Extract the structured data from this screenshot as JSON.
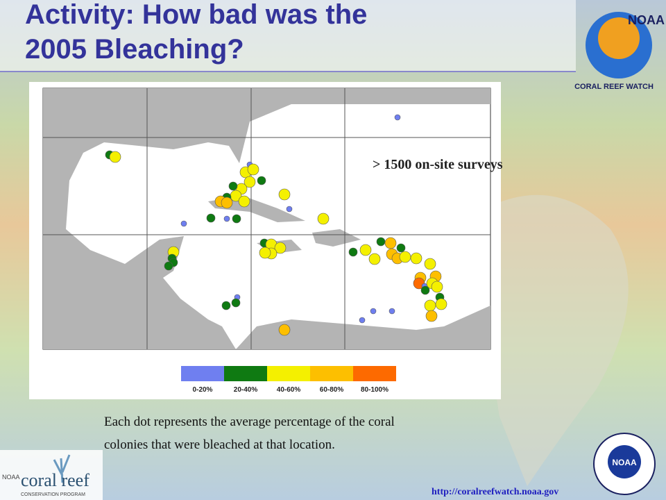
{
  "slide": {
    "title": "Activity: How bad was the 2005 Bleaching?",
    "annotation": "> 1500 on-site surveys",
    "legend": [
      {
        "label": "0-20%",
        "color": "#6f7ff0"
      },
      {
        "label": "20-40%",
        "color": "#0f7a12"
      },
      {
        "label": "40-60%",
        "color": "#f4f000"
      },
      {
        "label": "60-80%",
        "color": "#fdbf00"
      },
      {
        "label": "80-100%",
        "color": "#fd6a00"
      }
    ],
    "caption": [
      "Each dot represents the average percentage of the coral",
      "colonies that were bleached at that location."
    ],
    "url": "http://coralreefwatch.noaa.gov",
    "logos": {
      "noaa": "NOAA",
      "crw": "CORAL REEF WATCH",
      "crcp_noaa": "NOAA",
      "crcp": "coral reef",
      "crcp_sub": "CONSERVATION PROGRAM"
    }
  }
}
